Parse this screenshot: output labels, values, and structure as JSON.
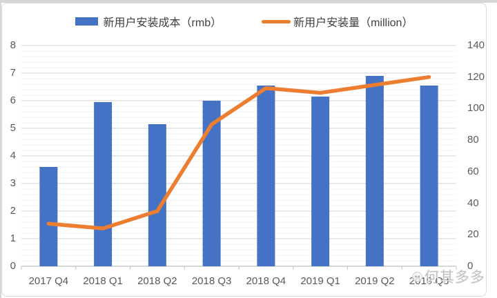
{
  "chart_data": {
    "type": "bar",
    "subtype": "bar-line-combo",
    "categories": [
      "2017 Q4",
      "2018 Q1",
      "2018 Q2",
      "2018 Q3",
      "2018 Q4",
      "2019 Q1",
      "2019 Q2",
      "2019 Q3"
    ],
    "series": [
      {
        "name": "新用户安装成本（rmb）",
        "type": "bar",
        "axis": "left",
        "color": "#4472C4",
        "values": [
          3.6,
          5.95,
          5.15,
          6.0,
          6.55,
          6.15,
          6.9,
          6.55
        ]
      },
      {
        "name": "新用户安装量（million）",
        "type": "line",
        "axis": "right",
        "color": "#ED7D31",
        "values": [
          27,
          24,
          35,
          90,
          113,
          110,
          115,
          120
        ]
      }
    ],
    "axes": {
      "left": {
        "min": 0,
        "max": 8,
        "step": 1,
        "ticks": [
          "0",
          "1",
          "2",
          "3",
          "4",
          "5",
          "6",
          "7",
          "8"
        ]
      },
      "right": {
        "min": 0,
        "max": 140,
        "step": 20,
        "ticks": [
          "0",
          "20",
          "40",
          "60",
          "80",
          "100",
          "120",
          "140"
        ]
      }
    },
    "grid": {
      "major": true,
      "minor": true,
      "minor_per_major": 5
    },
    "legend_position": "top",
    "title": "",
    "xlabel": "",
    "ylabel": ""
  },
  "watermark": {
    "text": "何其多多"
  },
  "colors": {
    "bar": "#4472C4",
    "line": "#ED7D31",
    "grid_major": "#D9D9D9",
    "grid_minor": "#F2F2F2",
    "axis_line": "#BFBFBF",
    "tick": "#C9C9C9",
    "axis_text": "#595959",
    "legend_text": "#3F3F3F"
  }
}
